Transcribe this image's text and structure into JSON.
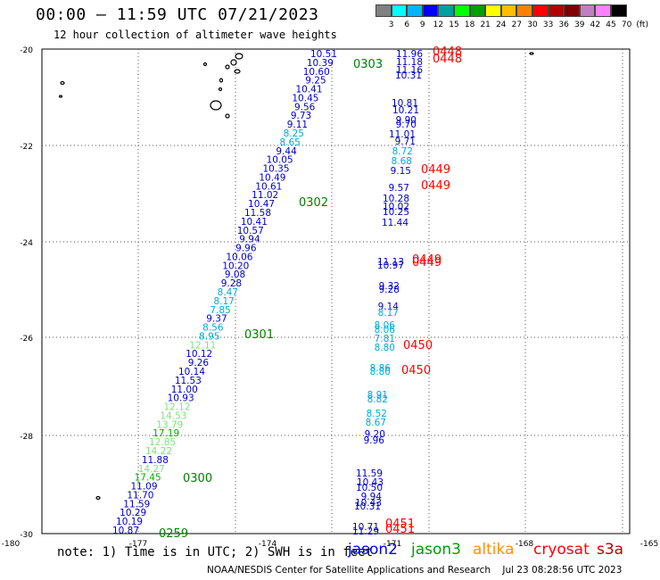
{
  "header": {
    "title": "00:00 — 11:59 UTC 07/21/2023",
    "subtitle": "12 hour collection of altimeter wave heights"
  },
  "color_scale": {
    "colors": [
      "#808080",
      "#00ffff",
      "#00b4ff",
      "#0000ff",
      "#00a0a0",
      "#00ff00",
      "#00a000",
      "#ffff00",
      "#ffbe00",
      "#ff8000",
      "#ff0000",
      "#b40000",
      "#800000",
      "#c080c0",
      "#ff80ff",
      "#000000"
    ],
    "labels": [
      "3",
      "6",
      "9",
      "12",
      "15",
      "18",
      "21",
      "24",
      "27",
      "30",
      "33",
      "36",
      "39",
      "42",
      "45",
      "70",
      "(ft)"
    ]
  },
  "axes": {
    "y_ticks": [
      "-20",
      "-22",
      "-24",
      "-26",
      "-28",
      "-30"
    ],
    "x_ticks": [
      "-180",
      "-177",
      "-174",
      "-171",
      "-168",
      "-165"
    ]
  },
  "tracks": {
    "left": [
      "10.51",
      "10.39",
      "10.60",
      "9.25",
      "10.41",
      "10.45",
      "9.56",
      "9.73",
      "9.11",
      "8.25",
      "8.65",
      "9.44",
      "10.05",
      "10.35",
      "10.49",
      "10.61",
      "11.02",
      "10.47",
      "11.58",
      "10.41",
      "10.57",
      "9.94",
      "9.96",
      "10.06",
      "10.20",
      "9.08",
      "9.28",
      "8.47",
      "8.17",
      "7.85",
      "9.37",
      "8.56",
      "8.95",
      "12.11",
      "10.12",
      "9.26",
      "10.14",
      "11.53",
      "11.00",
      "10.93",
      "12.12",
      "14.53",
      "13.79",
      "17.19",
      "12.85",
      "14.22",
      "11.88",
      "14.27",
      "17.45",
      "11.09",
      "11.70",
      "11.59",
      "10.29",
      "10.19",
      "10.87"
    ],
    "right": [
      "11.96",
      "11.18",
      "11.16",
      "10.31",
      "10.81",
      "10.21",
      "9.90",
      "9.70",
      "11.01",
      "9.71",
      "8.72",
      "8.68",
      "9.15",
      "9.57",
      "10.28",
      "10.02",
      "10.25",
      "11.44",
      "11.13",
      "10.97",
      "9.32",
      "9.28",
      "9.14",
      "8.17",
      "8.06",
      "8.06",
      "7.81",
      "8.80",
      "8.86",
      "8.80",
      "8.91",
      "8.82",
      "8.52",
      "8.67",
      "9.20",
      "9.96",
      "11.59",
      "10.43",
      "10.50",
      "9.94",
      "10.43",
      "10.31",
      "10.71",
      "11.29"
    ],
    "time_labels": [
      "0303",
      "0302",
      "0301",
      "0300",
      "0259",
      "0448",
      "0448",
      "0449",
      "0449",
      "0449",
      "0449",
      "0450",
      "0450",
      "0451",
      "0451"
    ]
  },
  "legend": {
    "note": "note: 1) Time is in UTC; 2) SWH is in feet",
    "missions": [
      {
        "name": "jason2",
        "color": "#0000ff"
      },
      {
        "name": "jason3",
        "color": "#00a000"
      },
      {
        "name": "altika",
        "color": "#ff9000"
      },
      {
        "name": "cryosat",
        "color": "#ff0000"
      },
      {
        "name": "s3a",
        "color": "#c00000"
      }
    ]
  },
  "footer": "NOAA/NESDIS Center for Satellite Applications and Research    Jul 23 08:28:56 UTC 2023"
}
